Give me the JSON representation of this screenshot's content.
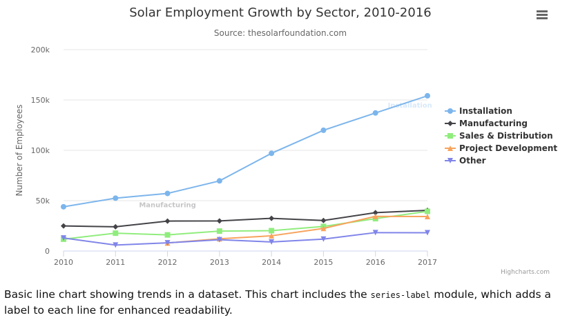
{
  "chart_data": {
    "type": "line",
    "title": "Solar Employment Growth by Sector, 2010-2016",
    "subtitle": "Source: thesolarfoundation.com",
    "y_title": "Number of Employees",
    "credits": "Highcharts.com",
    "x": [
      2010,
      2011,
      2012,
      2013,
      2014,
      2015,
      2016,
      2017
    ],
    "xlim": [
      2010,
      2017
    ],
    "xticks": [
      2010,
      2011,
      2012,
      2013,
      2014,
      2015,
      2016,
      2017
    ],
    "ylim": [
      0,
      200000
    ],
    "yticks": [
      0,
      {
        "value": 50000,
        "label": "50k"
      },
      {
        "value": 100000,
        "label": "100k"
      },
      {
        "value": 150000,
        "label": "150k"
      },
      {
        "value": 200000,
        "label": "200k"
      }
    ],
    "grid": true,
    "legend": "right",
    "series": [
      {
        "name": "Installation",
        "color": "#7cb5ec",
        "marker": "circle",
        "values": [
          43934,
          52503,
          57177,
          69658,
          97031,
          119931,
          137133,
          154175
        ]
      },
      {
        "name": "Manufacturing",
        "color": "#434348",
        "marker": "diamond",
        "values": [
          24916,
          24064,
          29742,
          29851,
          32490,
          30282,
          38121,
          40434
        ]
      },
      {
        "name": "Sales & Distribution",
        "color": "#90ed7d",
        "marker": "square",
        "values": [
          11744,
          17722,
          16005,
          19771,
          20185,
          24377,
          32147,
          39387
        ]
      },
      {
        "name": "Project Development",
        "color": "#f7a35c",
        "marker": "triangle",
        "values": [
          null,
          null,
          7988,
          12169,
          15112,
          22452,
          34400,
          34227
        ]
      },
      {
        "name": "Other",
        "color": "#8085e9",
        "marker": "triangle-down",
        "values": [
          12908,
          5948,
          8105,
          11248,
          8989,
          11816,
          18274,
          18111
        ]
      }
    ]
  },
  "description": {
    "before": "Basic line chart showing trends in a dataset. This chart includes the ",
    "code": "series-label",
    "after": " module, which adds a label to each line for enhanced readability."
  }
}
